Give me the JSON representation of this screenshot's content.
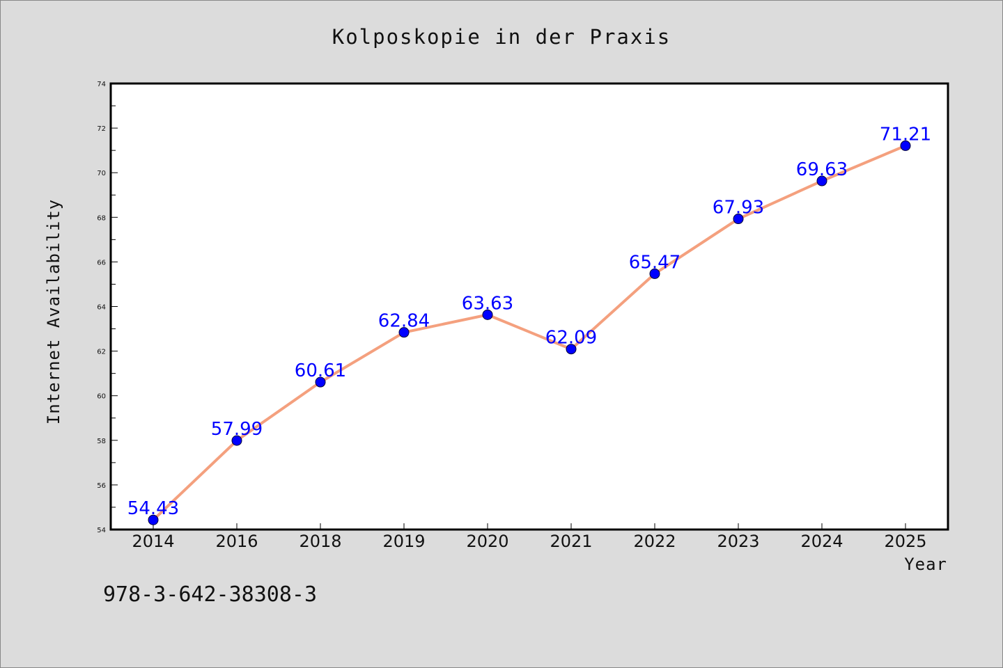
{
  "chart_data": {
    "type": "line",
    "title": "Kolposkopie in der Praxis",
    "xlabel": "Year",
    "ylabel": "Internet Availability",
    "categories": [
      "2014",
      "2016",
      "2018",
      "2019",
      "2020",
      "2021",
      "2022",
      "2023",
      "2024",
      "2025"
    ],
    "series": [
      {
        "values": [
          54.43,
          57.99,
          60.61,
          62.84,
          63.63,
          62.09,
          65.47,
          67.93,
          69.63,
          71.21
        ],
        "data_labels": [
          "54.43",
          "57.99",
          "60.61",
          "62.84",
          "63.63",
          "62.09",
          "65.47",
          "67.93",
          "69.63",
          "71.21"
        ],
        "line_color": "#f4a07e",
        "marker_color": "#0000ff"
      }
    ],
    "ylim": [
      54,
      74
    ],
    "yticks": [
      "54",
      "56",
      "58",
      "60",
      "62",
      "64",
      "66",
      "68",
      "70",
      "72",
      "74"
    ],
    "grid": false,
    "legend": "none"
  },
  "footnote": "978-3-642-38308-3",
  "colors": {
    "background": "#dcdcdc",
    "plot_background": "#ffffff",
    "label_color": "#0000ff"
  }
}
